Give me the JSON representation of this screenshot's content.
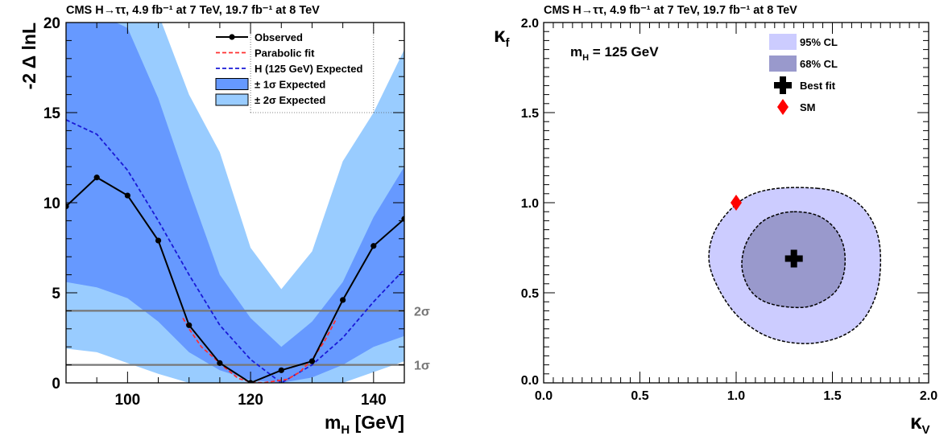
{
  "chart_data": [
    {
      "type": "line",
      "title": "CMS H→ττ, 4.9 fb⁻¹ at 7 TeV, 19.7 fb⁻¹ at 8 TeV",
      "xlabel": "m_H [GeV]",
      "xlabel_main": "m",
      "xlabel_sub": "H",
      "xlabel_unit": " [GeV]",
      "ylabel": "-2 Δ lnL",
      "xlim": [
        90,
        145
      ],
      "ylim": [
        0,
        20
      ],
      "x_ticks": [
        100,
        120,
        140
      ],
      "y_ticks": [
        0,
        5,
        10,
        15,
        20
      ],
      "grid": "partial dotted at x=120, x=140, y=15",
      "legend_position": "top-right",
      "legend": {
        "observed": "Observed",
        "parabolic": "Parabolic fit",
        "expected": "H (125 GeV) Expected",
        "band1": "± 1σ Expected",
        "band2": "± 2σ Expected"
      },
      "colors": {
        "observed": "#000000",
        "parabolic": "#ff3030",
        "expected": "#1a1ad6",
        "band1": "#6699ff",
        "band2": "#99ccff",
        "sigma_lines": "#777777"
      },
      "sigma_lines": [
        {
          "y": 1,
          "label": "1σ"
        },
        {
          "y": 4,
          "label": "2σ"
        }
      ],
      "series": [
        {
          "name": "Observed",
          "x": [
            90,
            95,
            100,
            105,
            110,
            115,
            120,
            125,
            130,
            135,
            140,
            145
          ],
          "values": [
            9.8,
            11.4,
            10.4,
            7.9,
            3.2,
            1.1,
            0.0,
            0.7,
            1.2,
            4.6,
            7.6,
            9.1
          ]
        },
        {
          "name": "Parabolic fit",
          "x": [
            109,
            110,
            112,
            114,
            116,
            118,
            120,
            122,
            124,
            126,
            128,
            130,
            132,
            134
          ],
          "values": [
            3.6,
            3.0,
            2.0,
            1.4,
            0.8,
            0.25,
            0.05,
            0.0,
            0.1,
            0.2,
            0.6,
            1.3,
            2.3,
            3.6
          ]
        },
        {
          "name": "H (125 GeV) Expected",
          "x": [
            90,
            95,
            100,
            105,
            110,
            115,
            120,
            125,
            130,
            135,
            140,
            145
          ],
          "values": [
            14.6,
            13.8,
            11.8,
            9.0,
            6.0,
            3.2,
            1.3,
            0.0,
            1.0,
            2.5,
            4.5,
            6.3
          ]
        }
      ],
      "bands": {
        "x": [
          90,
          95,
          100,
          105,
          110,
          115,
          120,
          125,
          130,
          135,
          140,
          145
        ],
        "lower_1sigma": [
          5.6,
          5.3,
          4.7,
          3.4,
          1.7,
          0.7,
          0.15,
          0.0,
          0.3,
          1.0,
          2.0,
          2.6
        ],
        "upper_1sigma": [
          20.5,
          20.5,
          19.7,
          15.8,
          10.8,
          6.0,
          3.6,
          2.0,
          3.4,
          5.6,
          9.2,
          12.0
        ],
        "lower_2sigma": [
          1.9,
          1.7,
          1.1,
          0.5,
          0.0,
          0.0,
          0.0,
          0.0,
          0.0,
          0.0,
          0.6,
          1.2
        ],
        "upper_2sigma": [
          22.0,
          22.0,
          22.0,
          20.5,
          16.0,
          12.8,
          7.5,
          5.2,
          7.3,
          12.3,
          15.0,
          18.5
        ]
      }
    },
    {
      "type": "scatter",
      "title": "CMS H→ττ, 4.9 fb⁻¹ at 7 TeV, 19.7 fb⁻¹ at 8 TeV",
      "xlabel": "κV",
      "xlabel_main": "κ",
      "xlabel_sub": "V",
      "ylabel": "κf",
      "ylabel_main": "κ",
      "ylabel_sub": "f",
      "xlim": [
        0,
        2
      ],
      "ylim": [
        0,
        2
      ],
      "x_ticks": [
        "0.0",
        "0.5",
        "1.0",
        "1.5",
        "2.0"
      ],
      "y_ticks": [
        "0.0",
        "0.5",
        "1.0",
        "1.5",
        "2.0"
      ],
      "grid": "off",
      "annotation": {
        "main": "m",
        "sub": "H",
        "rest": " = 125 GeV"
      },
      "legend_position": "top-right",
      "legend": {
        "cl95": "95% CL",
        "cl68": "68% CL",
        "best": "Best fit",
        "sm": "SM"
      },
      "colors": {
        "cl95": "#ccccff",
        "cl68": "#9999cc",
        "best": "#000000",
        "sm": "#ff0000"
      },
      "best_fit": {
        "x": 1.3,
        "y": 0.69
      },
      "sm_point": {
        "x": 1.0,
        "y": 1.0
      },
      "contour_95": [
        [
          1.42,
          1.08
        ],
        [
          1.55,
          1.05
        ],
        [
          1.66,
          0.97
        ],
        [
          1.73,
          0.84
        ],
        [
          1.75,
          0.68
        ],
        [
          1.73,
          0.5
        ],
        [
          1.66,
          0.35
        ],
        [
          1.55,
          0.26
        ],
        [
          1.4,
          0.22
        ],
        [
          1.25,
          0.23
        ],
        [
          1.12,
          0.28
        ],
        [
          1.0,
          0.38
        ],
        [
          0.91,
          0.52
        ],
        [
          0.86,
          0.67
        ],
        [
          0.88,
          0.82
        ],
        [
          0.96,
          0.95
        ],
        [
          1.07,
          1.04
        ],
        [
          1.22,
          1.08
        ]
      ],
      "contour_68": [
        [
          1.3,
          0.95
        ],
        [
          1.42,
          0.93
        ],
        [
          1.51,
          0.86
        ],
        [
          1.56,
          0.75
        ],
        [
          1.56,
          0.61
        ],
        [
          1.51,
          0.5
        ],
        [
          1.4,
          0.43
        ],
        [
          1.28,
          0.42
        ],
        [
          1.15,
          0.45
        ],
        [
          1.07,
          0.52
        ],
        [
          1.03,
          0.64
        ],
        [
          1.05,
          0.77
        ],
        [
          1.12,
          0.88
        ],
        [
          1.2,
          0.93
        ]
      ]
    }
  ]
}
